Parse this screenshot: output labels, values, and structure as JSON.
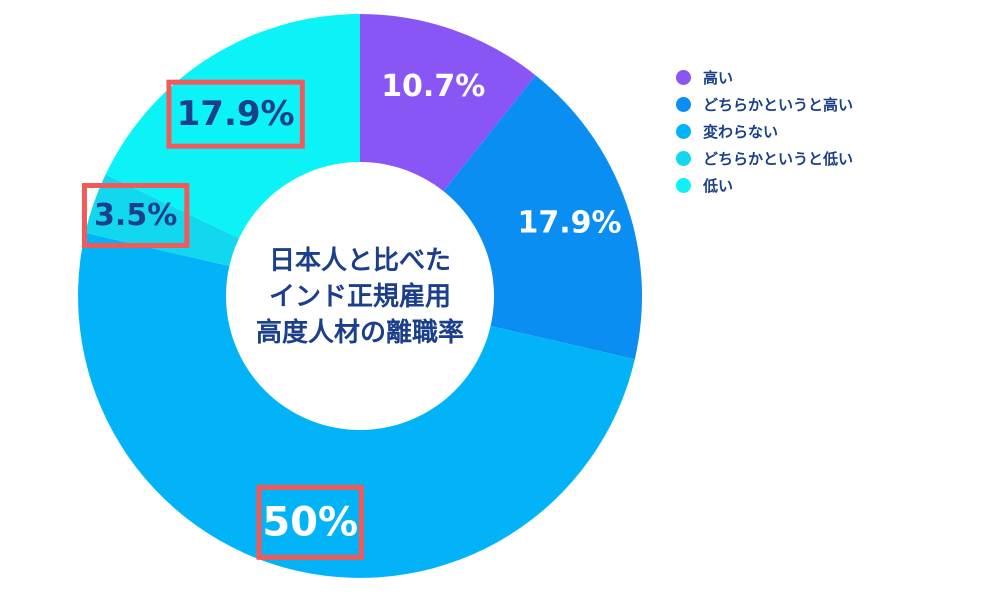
{
  "chart_data": {
    "type": "pie",
    "title": "日本人と比べた\nインド正規雇用\n高度人材の離職率",
    "categories": [
      "高い",
      "どちらかというと高い",
      "変わらない",
      "どちらかというと低い",
      "低い"
    ],
    "values": [
      10.7,
      17.9,
      50,
      3.5,
      17.9
    ],
    "labels": [
      "10.7%",
      "17.9%",
      "50%",
      "3.5%",
      "17.9%"
    ],
    "colors": [
      "#8a55f5",
      "#0a8ef2",
      "#02b4f7",
      "#12d8ef",
      "#0cf3f7"
    ],
    "highlighted": [
      false,
      false,
      true,
      true,
      true
    ],
    "legend_position": "right"
  },
  "style": {
    "highlight_color": "#f25a5a",
    "label_dark_color": "#1b3f8a",
    "label_light_color": "#ffffff",
    "center_text_color": "#1b3f8a"
  }
}
